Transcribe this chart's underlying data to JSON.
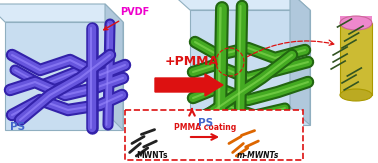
{
  "fig_width": 3.78,
  "fig_height": 1.63,
  "dpi": 100,
  "bg_color": "#ffffff",
  "cube_face_color": "#c8ddf0",
  "cube_top_color": "#daeaf8",
  "cube_right_color": "#b0c8dc",
  "cube_edge_color": "#90afc0",
  "pvdf_color": "#ee00cc",
  "pvdf_label": "PVDF",
  "ps_label": "PS",
  "ps_color": "#4466cc",
  "tube_left_color": "#6655dd",
  "tube_left_dark": "#3322aa",
  "tube_left_light": "#9988ff",
  "tube_right_color": "#44aa22",
  "tube_right_dark": "#226611",
  "tube_right_light": "#88dd55",
  "arrow_color": "#dd1111",
  "pmma_label": "+PMMA",
  "box_edge_color": "#dd1111",
  "mwnt_label": "MWNTs",
  "mmwnt_label": "m-MWNTs",
  "pmma_coating_label": "PMMA coating",
  "cap_pink": "#ee88cc",
  "cap_yellow": "#ccbb33",
  "cap_green_line": "#445533"
}
